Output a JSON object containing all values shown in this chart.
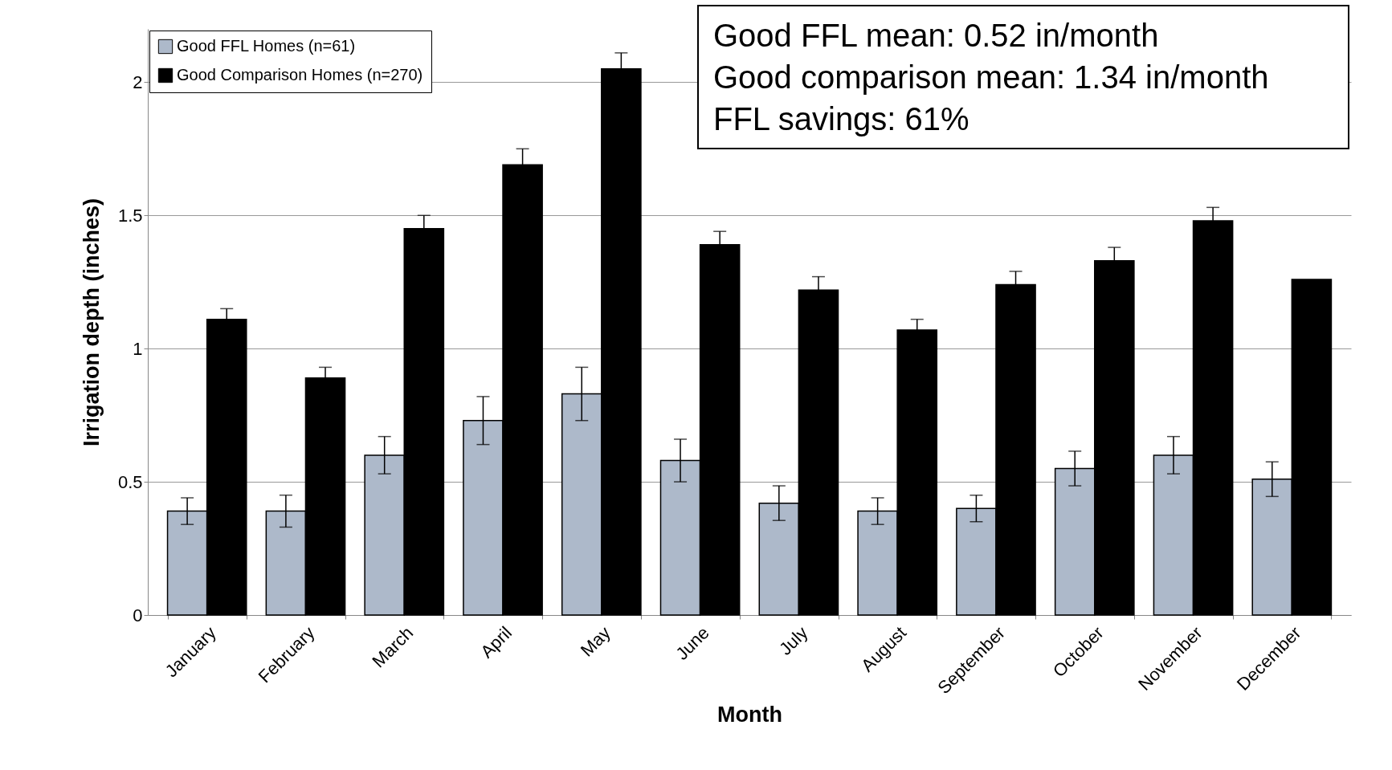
{
  "chart_data": {
    "type": "bar",
    "xlabel": "Month",
    "ylabel": "Irrigation depth (inches)",
    "categories": [
      "January",
      "February",
      "March",
      "April",
      "May",
      "June",
      "July",
      "August",
      "September",
      "October",
      "November",
      "December"
    ],
    "series": [
      {
        "name": "Good FFL Homes (n=61)",
        "color": "#adb9ca",
        "values": [
          0.39,
          0.39,
          0.6,
          0.73,
          0.83,
          0.58,
          0.42,
          0.39,
          0.4,
          0.55,
          0.6,
          0.51
        ],
        "errors": [
          0.05,
          0.06,
          0.07,
          0.09,
          0.1,
          0.08,
          0.065,
          0.05,
          0.05,
          0.065,
          0.07,
          0.065
        ]
      },
      {
        "name": "Good Comparison Homes (n=270)",
        "color": "#000000",
        "values": [
          1.11,
          0.89,
          1.45,
          1.69,
          2.05,
          1.39,
          1.22,
          1.07,
          1.24,
          1.33,
          1.48,
          1.26
        ],
        "errors": [
          0.04,
          0.04,
          0.05,
          0.06,
          0.06,
          0.05,
          0.05,
          0.04,
          0.05,
          0.05,
          0.05,
          null
        ]
      }
    ],
    "ylim": [
      0,
      2.2
    ],
    "yticks": [
      0,
      0.5,
      1,
      1.5,
      2
    ],
    "grid": "y",
    "legend": "top left",
    "annotations": [
      "Good FFL mean: 0.52 in/month",
      "Good comparison mean: 1.34 in/month",
      "FFL savings: 61%"
    ]
  }
}
